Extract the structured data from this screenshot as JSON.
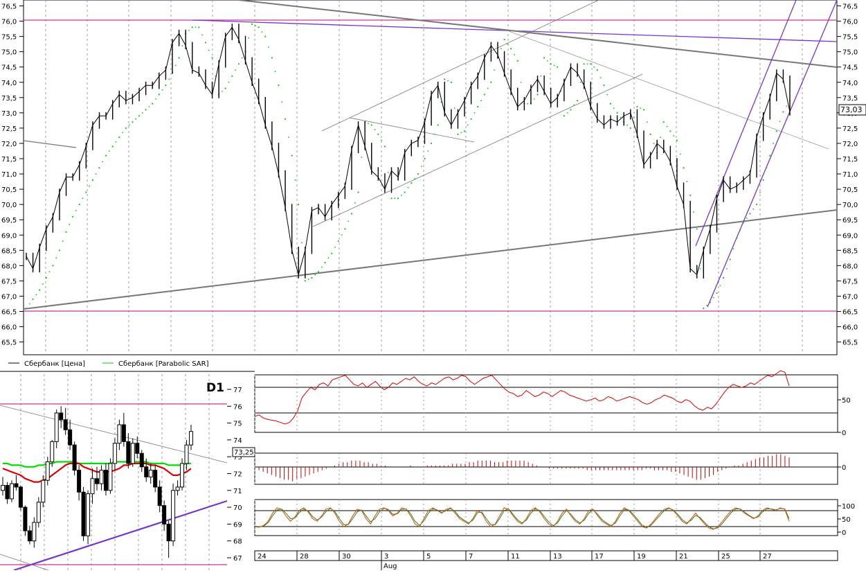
{
  "chart_data": [
    {
      "type": "line",
      "panel": "main",
      "y_ticks": [
        "76,5",
        "76,0",
        "75,5",
        "75,0",
        "74,5",
        "74,0",
        "73,5",
        "73,0",
        "72,5",
        "72,0",
        "71,5",
        "71,0",
        "70,5",
        "70,0",
        "69,5",
        "69,0",
        "68,5",
        "68,0",
        "67,5",
        "67,0",
        "66,5",
        "66,0",
        "65,5"
      ],
      "ylim": [
        65.25,
        76.7
      ],
      "last_price_label": "73,03",
      "last_price": 73.03,
      "legend": [
        {
          "name": "Сбербанк [Цена]",
          "color": "#000000"
        },
        {
          "name": "Сбербанк [Parabolic SAR]",
          "color": "#00cc00"
        }
      ],
      "price": [
        68.3,
        67.9,
        68.6,
        69.2,
        69.6,
        70.4,
        70.9,
        70.9,
        71.3,
        71.9,
        72.6,
        72.9,
        72.9,
        73.3,
        73.6,
        73.4,
        73.5,
        73.7,
        73.9,
        73.9,
        74.2,
        74.4,
        75.3,
        75.6,
        75.2,
        74.4,
        74.3,
        73.9,
        73.6,
        74.6,
        75.5,
        75.8,
        75.4,
        74.7,
        74.0,
        73.4,
        72.6,
        71.9,
        71.0,
        69.9,
        68.5,
        67.7,
        68.5,
        69.8,
        69.9,
        69.6,
        70.0,
        70.3,
        70.6,
        71.8,
        72.6,
        71.9,
        71.1,
        70.9,
        70.5,
        71.1,
        70.9,
        71.7,
        72.0,
        72.1,
        72.7,
        73.6,
        73.9,
        73.0,
        72.6,
        73.0,
        73.4,
        73.9,
        74.2,
        74.8,
        75.2,
        74.9,
        74.3,
        73.7,
        73.2,
        73.4,
        73.8,
        74.1,
        73.7,
        73.3,
        73.5,
        74.0,
        74.5,
        74.3,
        73.9,
        73.2,
        72.8,
        72.6,
        72.8,
        72.7,
        72.9,
        73.0,
        72.3,
        71.3,
        71.6,
        72.0,
        71.8,
        71.4,
        70.6,
        70.0,
        67.9,
        67.7,
        68.5,
        69.2,
        70.2,
        70.8,
        70.5,
        70.6,
        70.8,
        71.0,
        72.2,
        72.9,
        73.5,
        74.3,
        74.1,
        73.03
      ],
      "sar": [
        66.6,
        66.9,
        67.2,
        67.6,
        68.0,
        68.5,
        69.1,
        69.6,
        70.0,
        70.4,
        70.8,
        71.2,
        71.6,
        71.9,
        72.2,
        72.5,
        72.7,
        72.9,
        73.1,
        73.3,
        73.6,
        73.9,
        74.3,
        74.8,
        75.6,
        75.8,
        75.8,
        75.3,
        74.8,
        73.6,
        73.8,
        74.2,
        74.6,
        75.0,
        75.9,
        75.8,
        75.5,
        74.8,
        73.9,
        72.8,
        71.6,
        70.0,
        67.5,
        67.6,
        67.8,
        68.1,
        68.4,
        68.8,
        69.2,
        69.7,
        70.4,
        72.7,
        72.6,
        72.3,
        71.9,
        70.2,
        70.2,
        70.4,
        70.7,
        71.0,
        71.5,
        72.0,
        72.6,
        74.1,
        74.0,
        72.3,
        72.4,
        72.8,
        73.2,
        73.6,
        74.0,
        74.8,
        75.4,
        75.1,
        74.7,
        73.3,
        73.3,
        73.6,
        74.8,
        74.6,
        74.5,
        72.9,
        73.1,
        73.4,
        74.6,
        74.6,
        74.4,
        73.9,
        73.3,
        73.0,
        72.7,
        72.5,
        73.2,
        73.1,
        72.3,
        71.7,
        72.7,
        72.4,
        72.1,
        71.2,
        70.3,
        69.2,
        66.6,
        66.8,
        67.1,
        67.6,
        68.2,
        68.9,
        69.4,
        69.7,
        70.0,
        70.8,
        71.6,
        72.4,
        73.03,
        73.4
      ]
    },
    {
      "type": "bar",
      "panel": "daily",
      "timeframe_label": "D1",
      "y_ticks": [
        "77",
        "76",
        "75",
        "74",
        "73",
        "72",
        "71",
        "70",
        "69",
        "68",
        "67"
      ],
      "ylim": [
        66.6,
        77.6
      ],
      "last_price_label": "73,25",
      "ohlc": [
        [
          71.0,
          71.8,
          70.7,
          71.3
        ],
        [
          71.3,
          71.5,
          70.2,
          70.5
        ],
        [
          70.5,
          71.6,
          70.3,
          71.4
        ],
        [
          71.4,
          71.9,
          71.0,
          71.2
        ],
        [
          71.2,
          71.3,
          69.8,
          70.0
        ],
        [
          70.0,
          70.1,
          68.3,
          68.6
        ],
        [
          68.6,
          68.9,
          67.8,
          68.0
        ],
        [
          68.0,
          69.4,
          67.6,
          69.1
        ],
        [
          69.1,
          70.6,
          68.8,
          70.3
        ],
        [
          70.3,
          71.9,
          70.0,
          71.6
        ],
        [
          71.6,
          73.0,
          71.3,
          72.7
        ],
        [
          72.7,
          74.0,
          72.4,
          73.9
        ],
        [
          73.9,
          75.8,
          73.5,
          75.6
        ],
        [
          75.6,
          76.0,
          74.7,
          75.2
        ],
        [
          75.2,
          75.9,
          74.3,
          74.6
        ],
        [
          74.6,
          75.2,
          73.4,
          73.7
        ],
        [
          73.7,
          73.9,
          71.9,
          72.2
        ],
        [
          72.2,
          72.5,
          70.4,
          70.9
        ],
        [
          70.9,
          71.2,
          68.0,
          68.3
        ],
        [
          68.3,
          71.0,
          67.8,
          70.8
        ],
        [
          70.8,
          72.3,
          70.2,
          71.7
        ],
        [
          71.7,
          72.4,
          71.0,
          71.4
        ],
        [
          71.4,
          72.5,
          71.0,
          72.2
        ],
        [
          72.2,
          72.6,
          70.7,
          71.0
        ],
        [
          71.0,
          72.9,
          70.8,
          72.6
        ],
        [
          72.6,
          74.1,
          72.2,
          73.8
        ],
        [
          73.8,
          75.2,
          73.4,
          74.9
        ],
        [
          74.9,
          75.6,
          73.6,
          73.9
        ],
        [
          73.9,
          74.4,
          72.3,
          72.6
        ],
        [
          72.6,
          74.1,
          72.4,
          73.8
        ],
        [
          73.8,
          74.2,
          72.9,
          73.2
        ],
        [
          73.2,
          73.4,
          72.1,
          72.4
        ],
        [
          72.4,
          72.9,
          71.5,
          71.8
        ],
        [
          71.8,
          72.6,
          71.4,
          72.2
        ],
        [
          72.2,
          72.5,
          70.9,
          71.2
        ],
        [
          71.2,
          71.6,
          69.7,
          70.1
        ],
        [
          70.1,
          70.4,
          68.6,
          69.0
        ],
        [
          69.0,
          69.2,
          67.0,
          68.0
        ],
        [
          68.0,
          71.4,
          67.7,
          71.0
        ],
        [
          71.0,
          71.6,
          70.7,
          71.2
        ],
        [
          71.2,
          72.9,
          71.0,
          72.6
        ],
        [
          72.6,
          74.0,
          72.2,
          73.7
        ],
        [
          73.7,
          74.9,
          73.4,
          74.5
        ]
      ],
      "ma_green": [
        72.6,
        72.6,
        72.5,
        72.5,
        72.5,
        72.4,
        72.4,
        72.4,
        72.5,
        72.5,
        72.6,
        72.6,
        72.7,
        72.7,
        72.7,
        72.7,
        72.7,
        72.6,
        72.6,
        72.6,
        72.6,
        72.6,
        72.6,
        72.6,
        72.6,
        72.7,
        72.7,
        72.7,
        72.7,
        72.7,
        72.7,
        72.7,
        72.7,
        72.6,
        72.6,
        72.6,
        72.6,
        72.5,
        72.5,
        72.5,
        72.5,
        72.6,
        72.6
      ],
      "ma_red": [
        72.3,
        72.2,
        72.1,
        72.0,
        71.9,
        71.7,
        71.6,
        71.5,
        71.5,
        71.6,
        71.7,
        71.9,
        72.1,
        72.3,
        72.5,
        72.6,
        72.6,
        72.6,
        72.4,
        72.3,
        72.2,
        72.1,
        72.1,
        72.1,
        72.1,
        72.2,
        72.3,
        72.5,
        72.5,
        72.6,
        72.6,
        72.6,
        72.6,
        72.5,
        72.5,
        72.4,
        72.3,
        72.1,
        71.9,
        71.9,
        72.0,
        72.1,
        72.3
      ]
    },
    {
      "type": "line",
      "panel": "oscillator",
      "y_ticks": [
        "50",
        "0"
      ],
      "values": [
        20,
        22,
        18,
        16,
        15,
        14,
        12,
        10,
        12,
        18,
        28,
        45,
        52,
        58,
        55,
        62,
        64,
        60,
        68,
        70,
        72,
        74,
        68,
        62,
        60,
        64,
        58,
        62,
        66,
        60,
        55,
        58,
        64,
        62,
        66,
        70,
        68,
        72,
        66,
        62,
        60,
        64,
        62,
        66,
        70,
        72,
        68,
        70,
        74,
        72,
        66,
        62,
        66,
        70,
        72,
        74,
        68,
        62,
        56,
        52,
        50,
        46,
        48,
        54,
        50,
        46,
        48,
        52,
        50,
        46,
        50,
        54,
        52,
        48,
        46,
        44,
        42,
        40,
        42,
        44,
        40,
        42,
        46,
        44,
        40,
        42,
        44,
        46,
        44,
        42,
        38,
        36,
        38,
        42,
        44,
        48,
        46,
        44,
        40,
        38,
        42,
        40,
        34,
        30,
        28,
        32,
        30,
        36,
        44,
        52,
        58,
        62,
        60,
        58,
        60,
        64,
        62,
        66,
        70,
        74,
        72,
        76,
        80,
        78,
        60
      ]
    },
    {
      "type": "bar",
      "panel": "histogram",
      "y_ticks": [
        "0"
      ],
      "values": [
        -1,
        -2,
        -3,
        -4,
        -5,
        -6,
        -7,
        -8,
        -8,
        -9,
        -8,
        -7,
        -6,
        -5,
        -4,
        -3,
        -2,
        -1,
        0,
        1,
        2,
        3,
        3,
        4,
        4,
        4,
        3,
        3,
        2,
        2,
        1,
        1,
        0,
        0,
        0,
        0,
        0,
        1,
        0,
        0,
        0,
        1,
        1,
        1,
        1,
        1,
        1,
        2,
        2,
        2,
        2,
        3,
        3,
        4,
        4,
        4,
        4,
        3,
        3,
        3,
        4,
        4,
        4,
        4,
        4,
        3,
        2,
        1,
        0,
        0,
        -1,
        -1,
        -1,
        -1,
        -1,
        -1,
        -1,
        -1,
        -1,
        -2,
        -2,
        -2,
        -2,
        -2,
        -2,
        -2,
        -2,
        -2,
        -2,
        -2,
        -2,
        -2,
        -2,
        -1,
        -1,
        -2,
        -2,
        -2,
        -2,
        -3,
        -3,
        -4,
        -5,
        -6,
        -7,
        -8,
        -8,
        -7,
        -6,
        -5,
        -3,
        -2,
        -1,
        0,
        1,
        1,
        2,
        3,
        4,
        5,
        6,
        6,
        7,
        7,
        8,
        8,
        7,
        6
      ]
    },
    {
      "type": "line",
      "panel": "stochastic",
      "y_ticks": [
        "100",
        "50",
        "0"
      ],
      "k": [
        20,
        18,
        25,
        40,
        70,
        90,
        85,
        60,
        40,
        55,
        80,
        90,
        75,
        50,
        40,
        60,
        85,
        90,
        70,
        40,
        20,
        30,
        60,
        85,
        80,
        50,
        30,
        60,
        85,
        90,
        80,
        60,
        70,
        90,
        85,
        60,
        30,
        20,
        50,
        80,
        90,
        80,
        70,
        85,
        90,
        70,
        50,
        40,
        30,
        50,
        80,
        70,
        40,
        20,
        30,
        60,
        90,
        85,
        60,
        40,
        30,
        50,
        80,
        90,
        75,
        50,
        30,
        20,
        40,
        70,
        85,
        60,
        40,
        30,
        50,
        80,
        85,
        60,
        40,
        30,
        20,
        40,
        70,
        90,
        80,
        60,
        40,
        20,
        15,
        30,
        50,
        70,
        85,
        90,
        80,
        60,
        40,
        30,
        50,
        70,
        50,
        30,
        15,
        10,
        20,
        40,
        60,
        80,
        90,
        85,
        70,
        60,
        50,
        60,
        80,
        90,
        85,
        80,
        90,
        85,
        40
      ],
      "d": [
        22,
        20,
        22,
        35,
        60,
        82,
        86,
        70,
        50,
        52,
        72,
        85,
        78,
        58,
        45,
        55,
        76,
        88,
        76,
        50,
        28,
        28,
        50,
        75,
        82,
        60,
        38,
        50,
        75,
        88,
        84,
        66,
        68,
        84,
        86,
        68,
        40,
        25,
        42,
        70,
        86,
        82,
        72,
        80,
        88,
        76,
        56,
        44,
        34,
        44,
        72,
        74,
        50,
        28,
        28,
        50,
        80,
        86,
        66,
        46,
        34,
        44,
        70,
        86,
        80,
        58,
        38,
        24,
        34,
        60,
        80,
        66,
        46,
        34,
        44,
        70,
        82,
        66,
        46,
        34,
        24,
        34,
        60,
        84,
        82,
        66,
        46,
        26,
        18,
        26,
        44,
        62,
        80,
        88,
        82,
        66,
        46,
        34,
        44,
        62,
        54,
        36,
        20,
        12,
        16,
        32,
        52,
        72,
        86,
        86,
        74,
        62,
        52,
        56,
        74,
        86,
        86,
        82,
        88,
        86,
        50
      ]
    }
  ],
  "x_axis": {
    "ticks": [
      "24",
      "28",
      "30",
      "3",
      "5",
      "7",
      "11",
      "13",
      "17",
      "19",
      "21",
      "25",
      "27"
    ],
    "month_label": "Aug"
  }
}
